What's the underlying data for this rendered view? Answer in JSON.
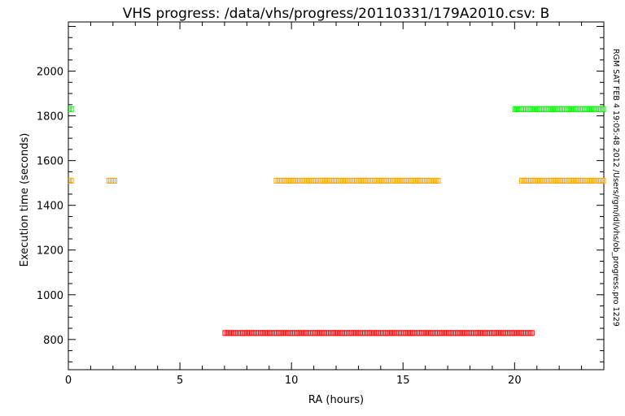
{
  "chart_data": {
    "type": "scatter",
    "title": "VHS progress: /data/vhs/progress/20110331/179A2010.csv: B",
    "xlabel": "RA (hours)",
    "ylabel": "Execution time (seconds)",
    "xlim": [
      0,
      24
    ],
    "ylim": [
      665,
      2220
    ],
    "xticks": [
      0,
      5,
      10,
      15,
      20
    ],
    "yticks": [
      800,
      1000,
      1200,
      1400,
      1600,
      1800,
      2000
    ],
    "grid": false,
    "side_annotation": "RGM SAT FEB  4 19:05:48 2012 /Users/rgm/idl/vhs/ob_progress.pro 1229",
    "series": [
      {
        "color": "#00ff00",
        "y": 1830,
        "segments": [
          [
            0.05,
            0.15
          ],
          [
            20.0,
            24.0
          ]
        ]
      },
      {
        "color": "#ffa500",
        "y": 1510,
        "segments": [
          [
            0.05,
            0.15
          ],
          [
            1.8,
            2.1
          ],
          [
            9.3,
            16.6
          ],
          [
            20.3,
            24.0
          ]
        ]
      },
      {
        "color": "#ff0000",
        "y": 829,
        "segments": [
          [
            7.0,
            20.8
          ]
        ]
      }
    ]
  }
}
